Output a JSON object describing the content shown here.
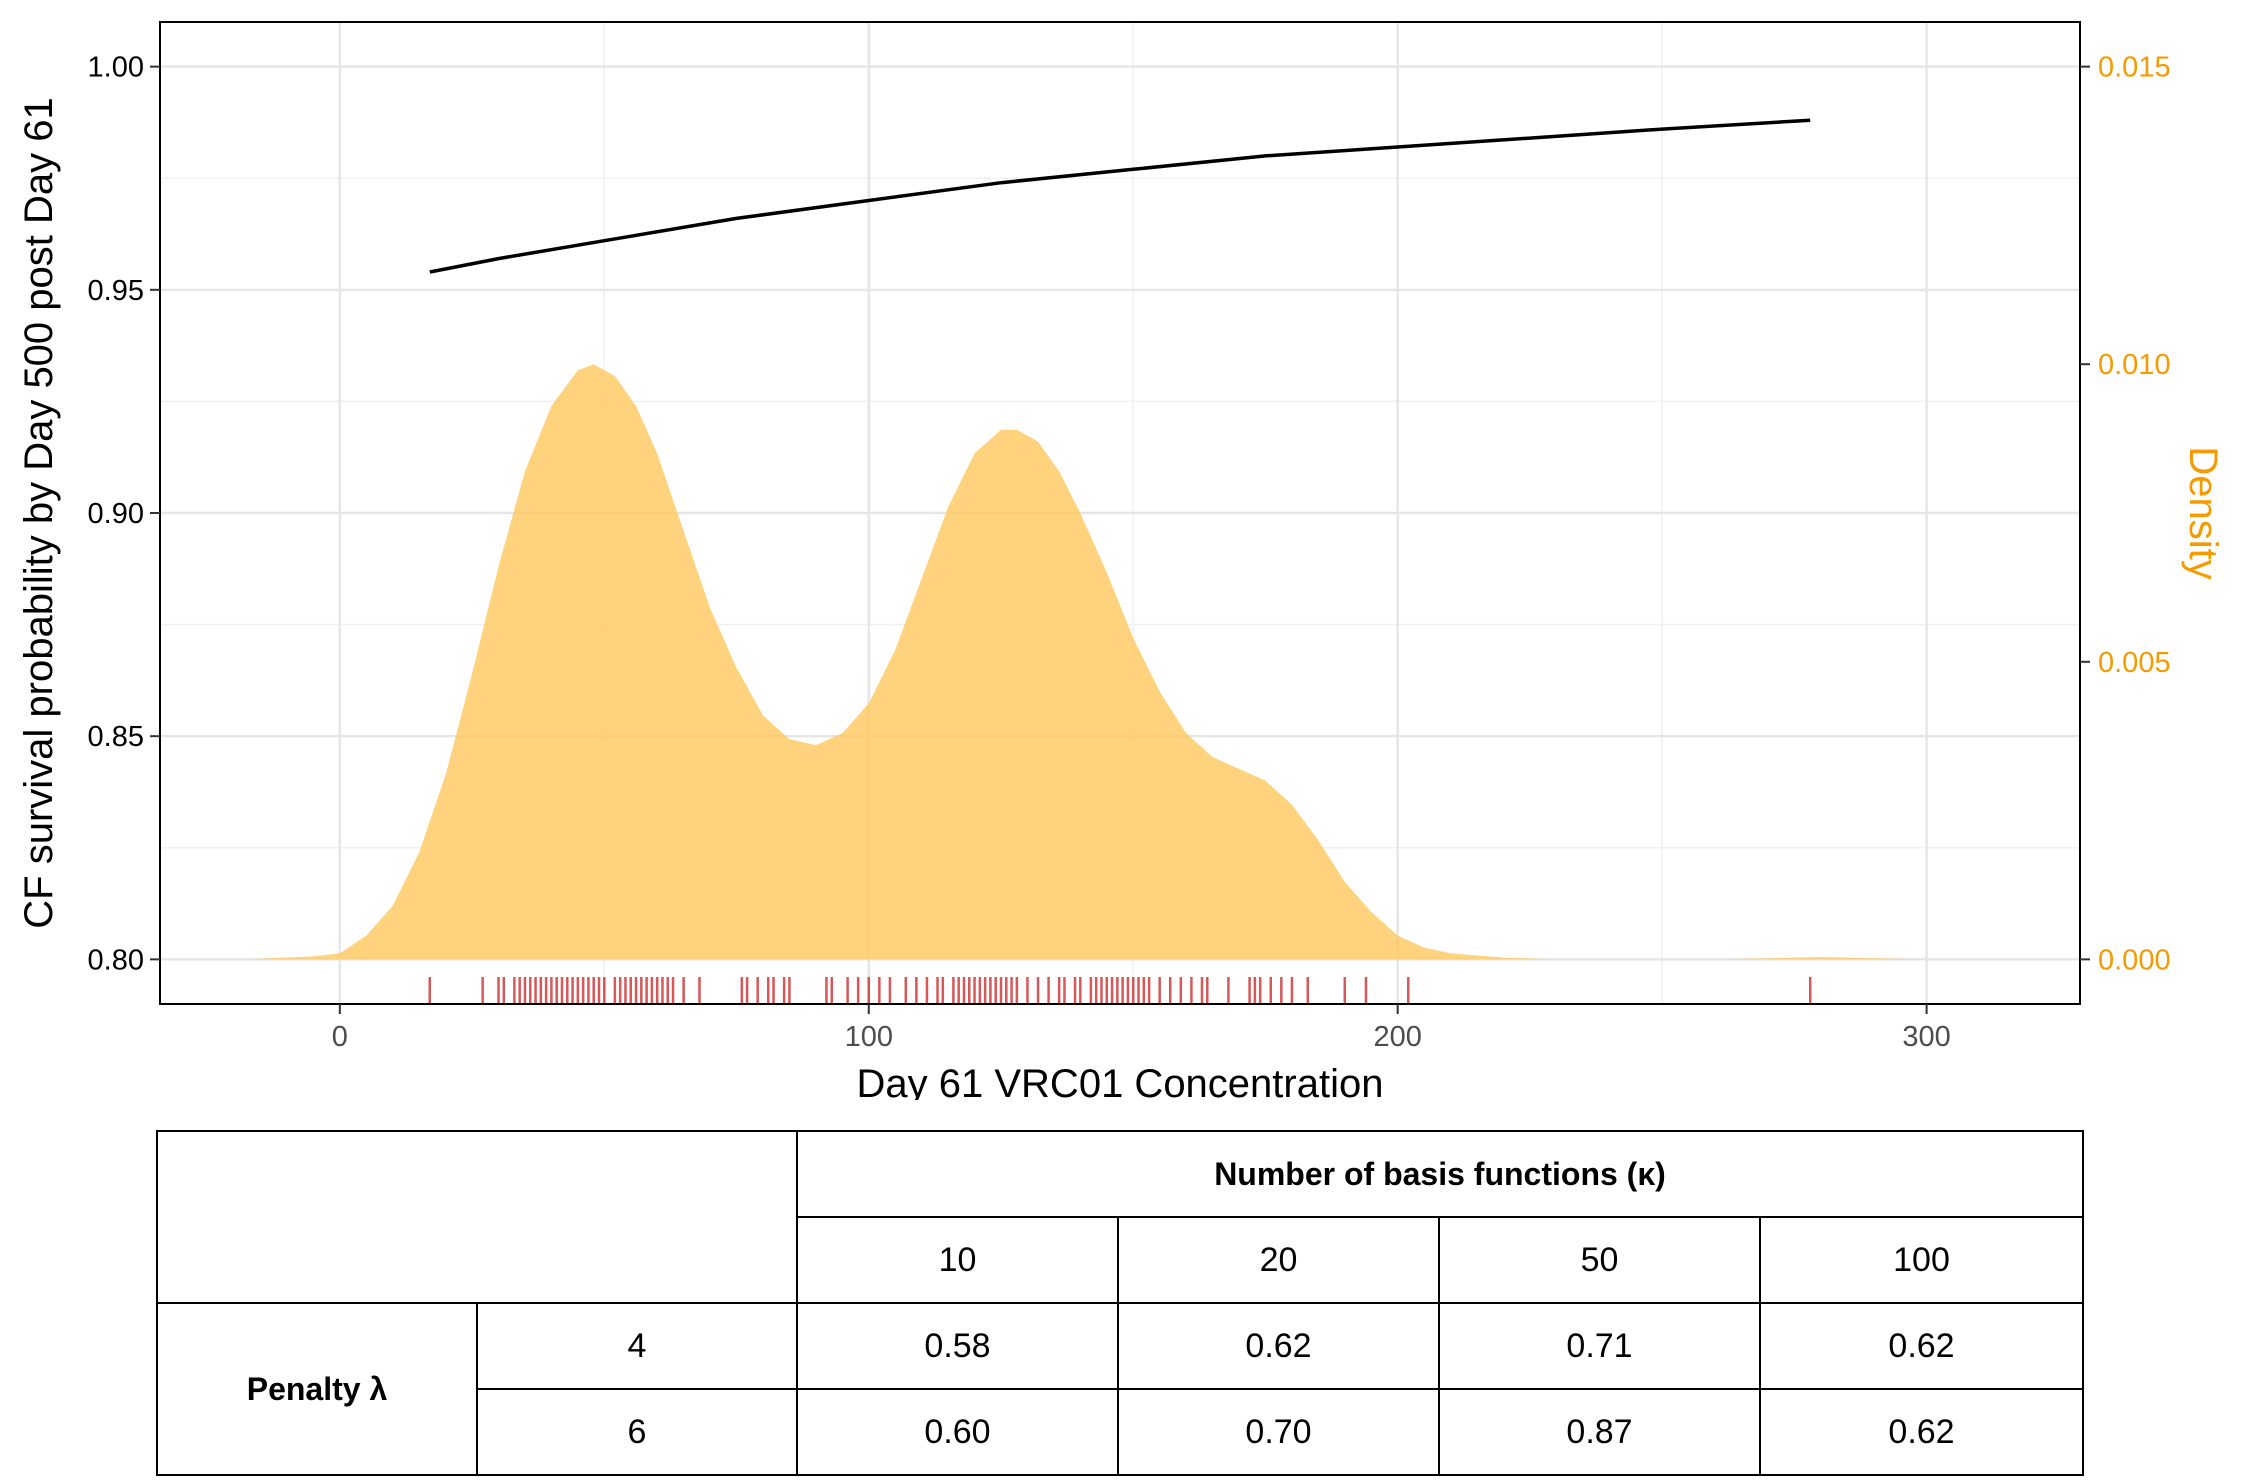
{
  "chart_data": {
    "type": "line",
    "x_axis": {
      "label": "Day 61 VRC01 Concentration",
      "range": [
        -34,
        329
      ],
      "ticks": [
        0,
        100,
        200,
        300
      ],
      "tick_labels": [
        "0",
        "100",
        "200",
        "300"
      ]
    },
    "y_axis_left": {
      "label": "CF survival probability by Day 500 post Day 61",
      "range": [
        0.79,
        1.01
      ],
      "ticks": [
        0.8,
        0.85,
        0.9,
        0.95,
        1.0
      ],
      "tick_labels": [
        "0.80",
        "0.85",
        "0.90",
        "0.95",
        "1.00"
      ]
    },
    "y_axis_right": {
      "label": "Density",
      "color": "#F59A00",
      "range": [
        0,
        0.015
      ],
      "ticks": [
        0.0,
        0.005,
        0.01,
        0.015
      ],
      "tick_labels": [
        "0.000",
        "0.005",
        "0.010",
        "0.015"
      ]
    },
    "grid": true,
    "series": [
      {
        "name": "CF survival curve",
        "type": "line",
        "color": "#000000",
        "x": [
          17,
          30,
          50,
          75,
          100,
          125,
          150,
          175,
          200,
          225,
          250,
          278
        ],
        "y": [
          0.954,
          0.957,
          0.961,
          0.966,
          0.97,
          0.974,
          0.977,
          0.98,
          0.982,
          0.984,
          0.986,
          0.988
        ]
      },
      {
        "name": "Density",
        "type": "area",
        "axis": "right",
        "color": "#FFC658",
        "x": [
          -18,
          -5,
          0,
          5,
          10,
          15,
          20,
          25,
          30,
          35,
          40,
          45,
          48,
          52,
          56,
          60,
          65,
          70,
          75,
          80,
          85,
          90,
          95,
          100,
          105,
          110,
          115,
          120,
          125,
          128,
          132,
          136,
          140,
          145,
          150,
          155,
          160,
          165,
          170,
          175,
          180,
          185,
          190,
          195,
          200,
          205,
          210,
          220,
          230,
          240,
          250,
          260,
          270,
          280,
          290,
          300,
          310
        ],
        "y": [
          0.0,
          5e-05,
          0.0001,
          0.0004,
          0.0009,
          0.0018,
          0.0031,
          0.0048,
          0.0066,
          0.0082,
          0.0093,
          0.0099,
          0.01,
          0.0098,
          0.0093,
          0.0085,
          0.0072,
          0.0059,
          0.0049,
          0.0041,
          0.0037,
          0.0036,
          0.0038,
          0.0043,
          0.0052,
          0.0064,
          0.0076,
          0.0085,
          0.0089,
          0.0089,
          0.0087,
          0.0082,
          0.0075,
          0.0065,
          0.0054,
          0.0045,
          0.0038,
          0.0034,
          0.0032,
          0.003,
          0.0026,
          0.002,
          0.0013,
          0.0008,
          0.0004,
          0.0002,
          0.0001,
          3e-05,
          0.0,
          0.0,
          0.0,
          0.0,
          2e-05,
          4e-05,
          2e-05,
          0.0,
          0.0
        ]
      }
    ],
    "rug": {
      "color": "#CC2E2E",
      "x": [
        17,
        27,
        30,
        31,
        33,
        34,
        35,
        36,
        37,
        38,
        39,
        40,
        41,
        42,
        43,
        44,
        45,
        46,
        47,
        48,
        49,
        50,
        52,
        53,
        54,
        55,
        56,
        57,
        58,
        59,
        60,
        61,
        62,
        63,
        65,
        68,
        76,
        77,
        79,
        81,
        82,
        84,
        85,
        92,
        93,
        96,
        98,
        100,
        102,
        104,
        107,
        109,
        111,
        113,
        114,
        116,
        117,
        118,
        119,
        120,
        121,
        122,
        123,
        124,
        125,
        126,
        127,
        128,
        130,
        132,
        134,
        136,
        137,
        139,
        140,
        142,
        143,
        144,
        145,
        146,
        147,
        148,
        149,
        150,
        151,
        152,
        153,
        155,
        157,
        159,
        161,
        163,
        164,
        168,
        172,
        173,
        174,
        176,
        178,
        180,
        183,
        190,
        194,
        202,
        278
      ]
    }
  },
  "table": {
    "header": "Number of basis functions (κ)",
    "columns": [
      "10",
      "20",
      "50",
      "100"
    ],
    "row_group_label": "Penalty λ",
    "rows": [
      {
        "lambda": "4",
        "values": [
          "0.58",
          "0.62",
          "0.71",
          "0.62"
        ]
      },
      {
        "lambda": "6",
        "values": [
          "0.60",
          "0.70",
          "0.87",
          "0.62"
        ]
      }
    ]
  }
}
